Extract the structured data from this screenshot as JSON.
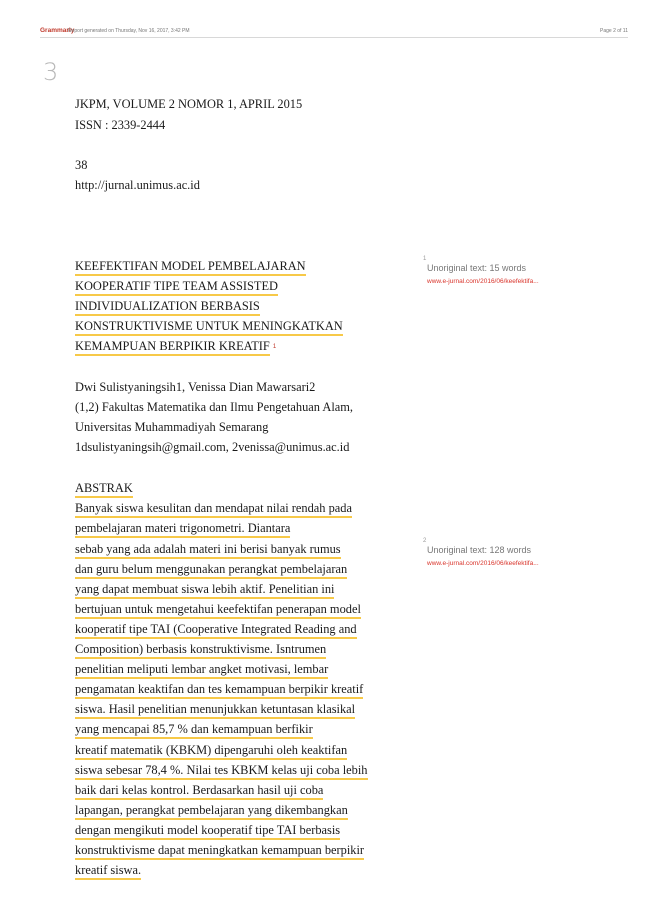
{
  "header": {
    "brand": "Grammarly",
    "generated": "Report generated on Thursday, Nov 16, 2017, 3:42 PM",
    "page_of": "Page 2 of 11"
  },
  "page_number": "3",
  "meta": {
    "journal": "JKPM, VOLUME 2 NOMOR 1, APRIL 2015",
    "issn": "ISSN : 2339-2444",
    "page": "38",
    "url": "http://jurnal.unimus.ac.id"
  },
  "title_lines": [
    "KEEFEKTIFAN   MODEL PEMBELAJARAN",
    "KOOPERATIF TIPE TEAM ASSISTED",
    "INDIVIDUALIZATION BERBASIS",
    "KONSTRUKTIVISME UNTUK MENINGKATKAN",
    "KEMAMPUAN BERPIKIR KREATIF"
  ],
  "title_marker": "1",
  "authors": [
    "Dwi Sulistyaningsih1, Venissa Dian Mawarsari2",
    "(1,2) Fakultas Matematika dan Ilmu Pengetahuan Alam,",
    "Universitas Muhammadiyah Semarang",
    "1dsulistyaningsih@gmail.com, 2venissa@unimus.ac.id"
  ],
  "abstract_heading": "ABSTRAK",
  "abstract_lines": [
    "Banyak siswa kesulitan dan mendapat nilai rendah pada",
    "pembelajaran materi trigonometri. Diantara",
    "sebab yang ada  adalah  materi ini  berisi banyak rumus",
    "dan  guru  belum menggunakan  perangkat pembelajaran",
    "yang dapat membuat siswa lebih aktif. Penelitian ini",
    "bertujuan untuk mengetahui keefektifan penerapan model",
    "kooperatif tipe TAI (Cooperative Integrated Reading and",
    "Composition) berbasis konstruktivisme. Isntrumen",
    "penelitian meliputi lembar angket motivasi, lembar",
    "pengamatan keaktifan dan tes kemampuan berpikir kreatif",
    "siswa. Hasil penelitian menunjukkan ketuntasan klasikal",
    "yang  mencapai  85,7  %    dan  kemampuan  berfikir",
    "kreatif  matematik  (KBKM)  dipengaruhi  oleh keaktifan",
    "siswa sebesar 78,4 %. Nilai tes KBKM kelas uji coba lebih",
    "baik dari kelas kontrol. Berdasarkan hasil uji coba",
    "lapangan, perangkat pembelajaran yang dikembangkan",
    "dengan mengikuti model kooperatif tipe TAI berbasis",
    "konstruktivisme dapat  meningkatkan kemampuan berpikir",
    "kreatif siswa."
  ],
  "sidebar": [
    {
      "marker": "1",
      "title": "Unoriginal text: 15 words",
      "source": "www.e-jurnal.com/2016/06/keefektifa..."
    },
    {
      "marker": "2",
      "title": "Unoriginal text: 128 words",
      "source": "www.e-jurnal.com/2016/06/keefektifa..."
    }
  ],
  "colors": {
    "highlight": "#f7c948",
    "brand": "#c0392b",
    "source_link": "#d9342b"
  }
}
